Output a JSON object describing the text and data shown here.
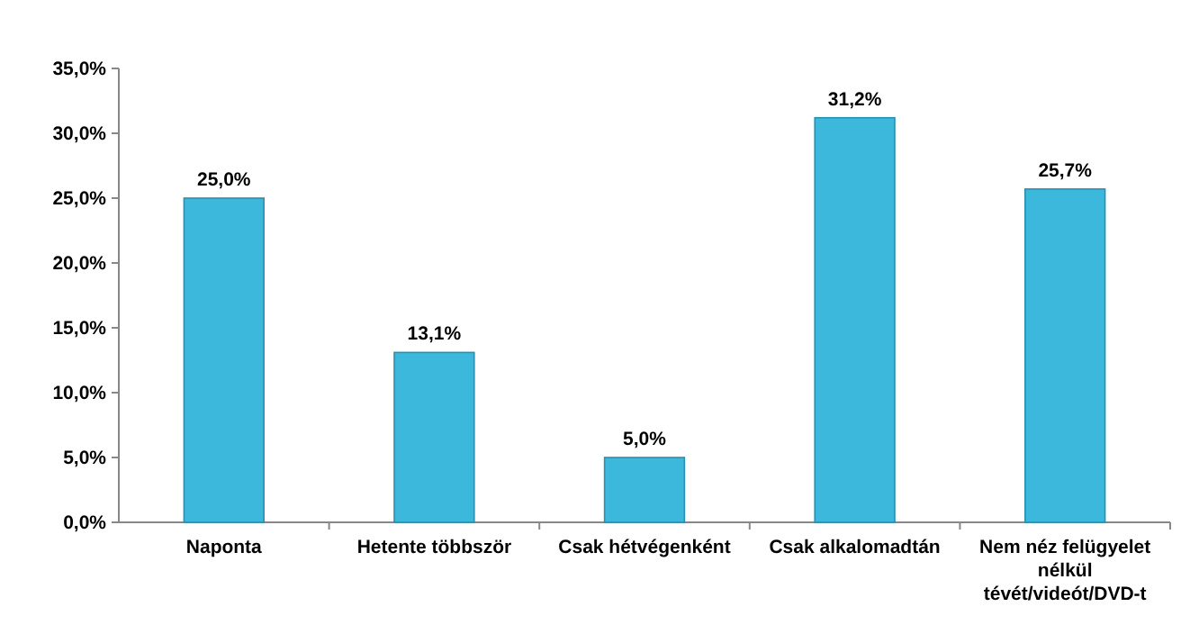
{
  "chart_data": {
    "type": "bar",
    "categories": [
      "Naponta",
      "Hetente többször",
      "Csak hétvégenként",
      "Csak alkalomadtán",
      "Nem néz felügyelet nélkül tévét/videót/DVD-t"
    ],
    "values": [
      25.0,
      13.1,
      5.0,
      31.2,
      25.7
    ],
    "value_labels": [
      "25,0%",
      "13,1%",
      "5,0%",
      "31,2%",
      "25,7%"
    ],
    "color": "#3db8dd",
    "ylim": [
      0,
      35
    ],
    "yticks": [
      {
        "value": 0,
        "label": "0,0%"
      },
      {
        "value": 5,
        "label": "5,0%"
      },
      {
        "value": 10,
        "label": "10,0%"
      },
      {
        "value": 15,
        "label": "15,0%"
      },
      {
        "value": 20,
        "label": "20,0%"
      },
      {
        "value": 25,
        "label": "25,0%"
      },
      {
        "value": 30,
        "label": "30,0%"
      },
      {
        "value": 35,
        "label": "35,0%"
      }
    ],
    "grid": false
  }
}
